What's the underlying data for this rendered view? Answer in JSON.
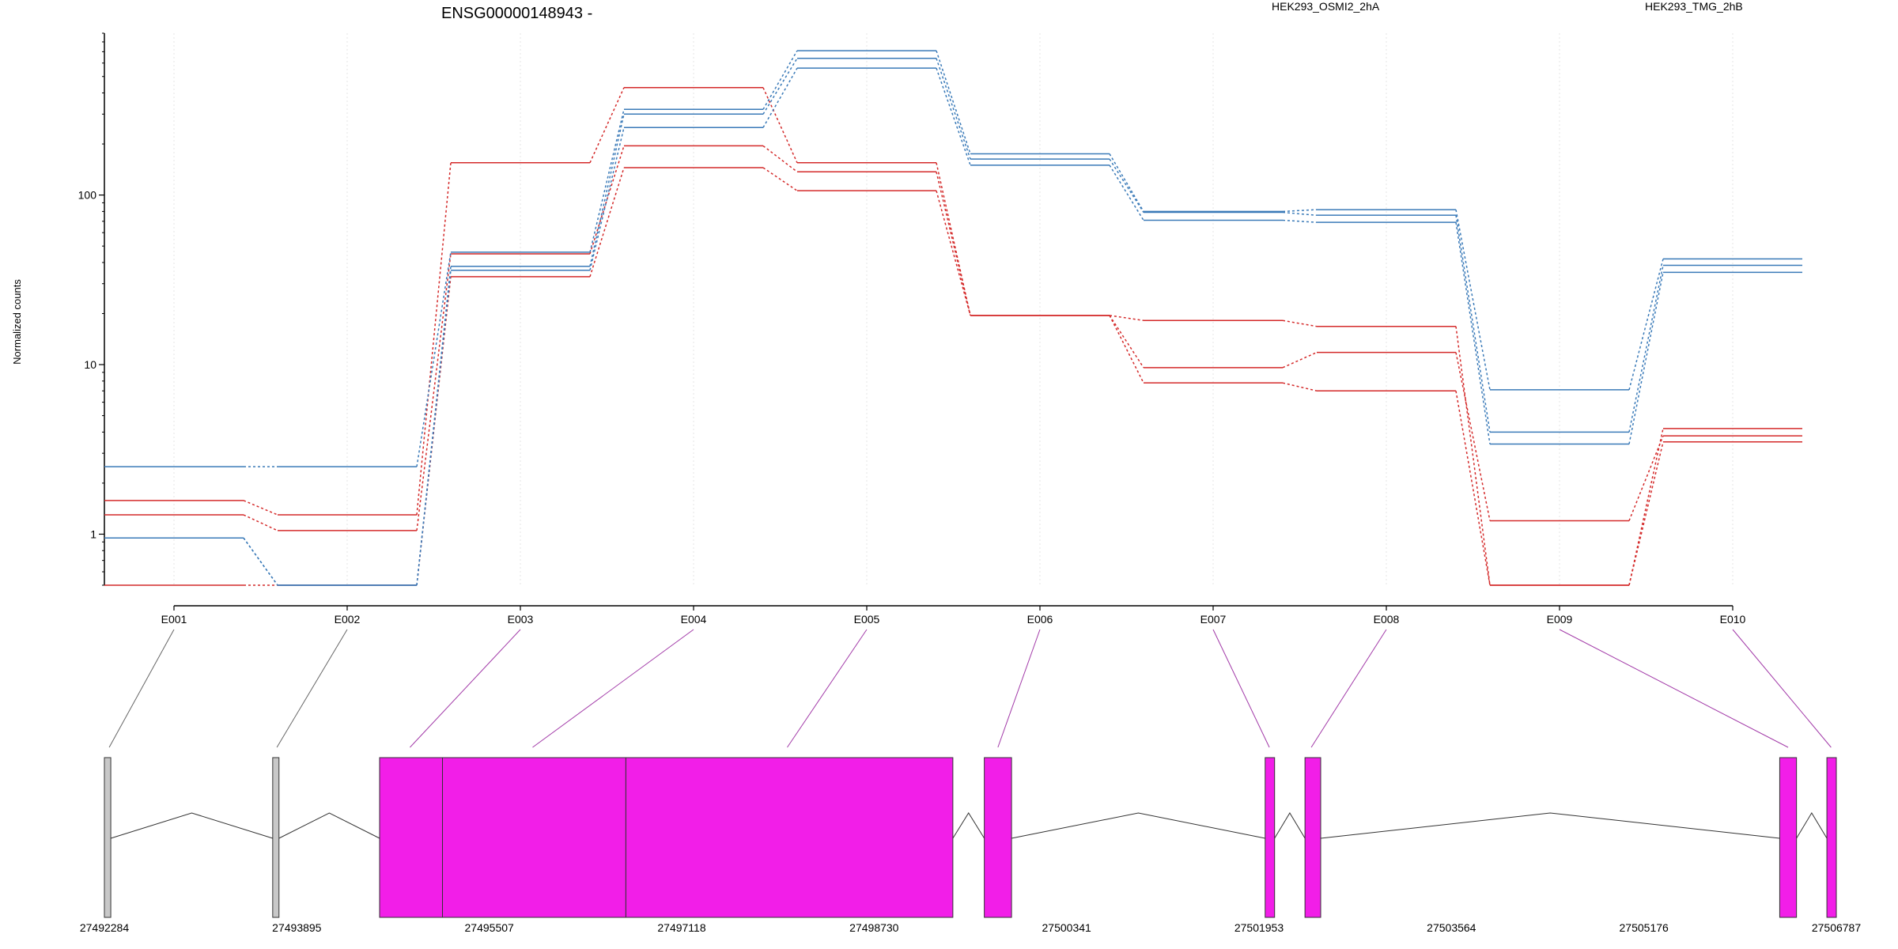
{
  "chart_data": {
    "type": "line",
    "title": "ENSG00000148943 -",
    "ylabel": "Normalized counts",
    "yscale": "log",
    "ylim": [
      0.5,
      900
    ],
    "yticks": [
      1,
      10,
      100
    ],
    "categories": [
      "E001",
      "E002",
      "E003",
      "E004",
      "E005",
      "E006",
      "E007",
      "E008",
      "E009",
      "E010"
    ],
    "legend": [
      {
        "label": "HEK293_OSMI2_2hA",
        "color": "#d42a2a"
      },
      {
        "label": "HEK293_TMG_2hB",
        "color": "#3a7ab8"
      }
    ],
    "series": [
      {
        "group": "HEK293_OSMI2_2hA",
        "color": "#d42a2a",
        "values": [
          1.58,
          1.3,
          155,
          430,
          155,
          19.5,
          18.2,
          16.8,
          0.5,
          4.2
        ]
      },
      {
        "group": "HEK293_OSMI2_2hA",
        "color": "#d42a2a",
        "values": [
          1.3,
          1.05,
          45,
          195,
          137,
          19.5,
          9.6,
          11.8,
          1.2,
          3.8
        ]
      },
      {
        "group": "HEK293_OSMI2_2hA",
        "color": "#d42a2a",
        "values": [
          0.5,
          0.5,
          33,
          145,
          106,
          19.5,
          7.8,
          7.0,
          0.5,
          3.5
        ]
      },
      {
        "group": "HEK293_TMG_2hB",
        "color": "#3a7ab8",
        "values": [
          2.5,
          2.5,
          46,
          320,
          710,
          175,
          80,
          82,
          7.1,
          42
        ]
      },
      {
        "group": "HEK293_TMG_2hB",
        "color": "#3a7ab8",
        "values": [
          0.95,
          0.5,
          38,
          300,
          640,
          163,
          79,
          76,
          4.0,
          38.5
        ]
      },
      {
        "group": "HEK293_TMG_2hB",
        "color": "#3a7ab8",
        "values": [
          0.95,
          0.5,
          36,
          250,
          560,
          150,
          71,
          69,
          3.4,
          35
        ]
      }
    ],
    "gene_model": {
      "axis_labels": [
        "27492284",
        "27493895",
        "27495507",
        "27497118",
        "27498730",
        "27500341",
        "27501953",
        "27503564",
        "27505176",
        "27506787"
      ],
      "exons": [
        {
          "start": 27492284,
          "end": 27492345,
          "color": "#c8c8c8"
        },
        {
          "start": 27493890,
          "end": 27493950,
          "color": "#c8c8c8"
        },
        {
          "start": 27494910,
          "end": 27495510,
          "color": "#f21ee8"
        },
        {
          "start": 27495510,
          "end": 27497260,
          "color": "#f21ee8"
        },
        {
          "start": 27497260,
          "end": 27500380,
          "color": "#f21ee8"
        },
        {
          "start": 27500680,
          "end": 27500940,
          "color": "#f21ee8"
        },
        {
          "start": 27503360,
          "end": 27503450,
          "color": "#f21ee8"
        },
        {
          "start": 27503740,
          "end": 27503890,
          "color": "#f21ee8"
        },
        {
          "start": 27508270,
          "end": 27508430,
          "color": "#f21ee8"
        },
        {
          "start": 27508720,
          "end": 27508810,
          "color": "#f21ee8"
        }
      ],
      "link_targets": [
        27492330,
        27493930,
        27495200,
        27496370,
        27498800,
        27500810,
        27503400,
        27503800,
        27508350,
        27508760
      ]
    }
  }
}
